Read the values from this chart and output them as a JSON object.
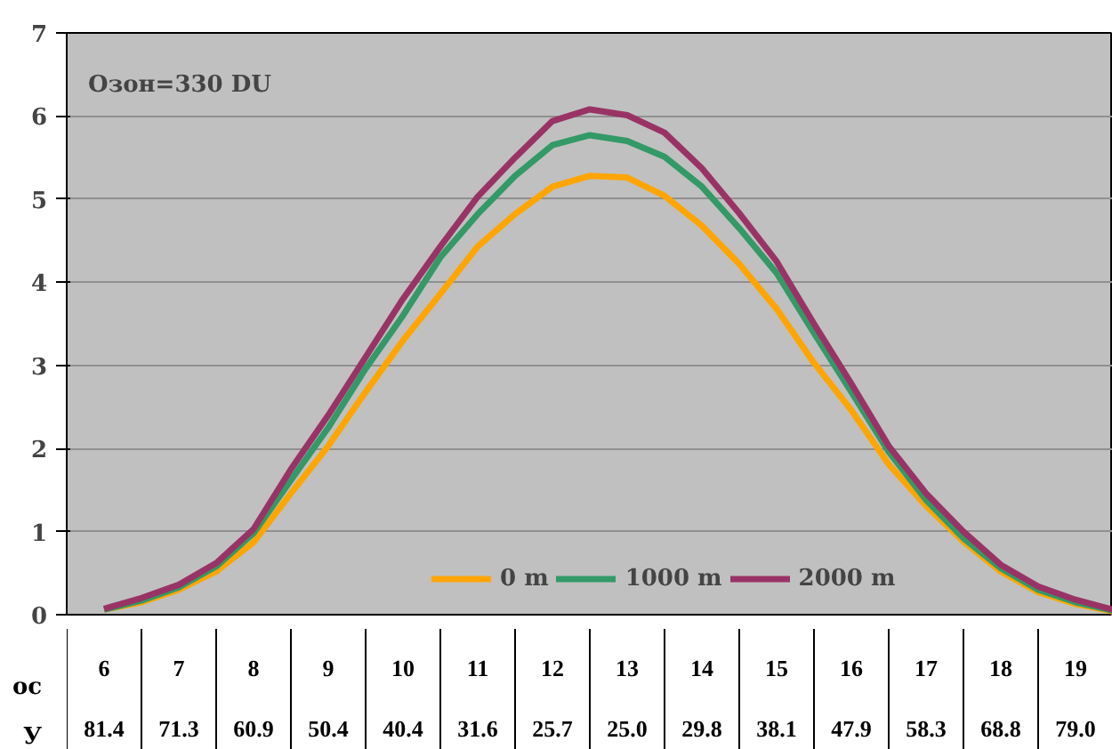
{
  "chart_data": {
    "type": "line",
    "title": "Озон=330 DU",
    "x": [
      6,
      6.5,
      7,
      7.5,
      8,
      8.5,
      9,
      9.5,
      10,
      10.5,
      11,
      11.5,
      12,
      12.5,
      13,
      13.5,
      14,
      14.5,
      15,
      15.5,
      16,
      16.5,
      17,
      17.5,
      18,
      18.5,
      19,
      19.5
    ],
    "series": [
      {
        "name": "0 m",
        "color": "#ffa500",
        "values": [
          0.06,
          0.15,
          0.3,
          0.52,
          0.87,
          1.46,
          2.03,
          2.68,
          3.3,
          3.86,
          4.43,
          4.82,
          5.15,
          5.28,
          5.26,
          5.04,
          4.68,
          4.22,
          3.68,
          3.03,
          2.46,
          1.81,
          1.31,
          0.88,
          0.52,
          0.27,
          0.13,
          0.04
        ]
      },
      {
        "name": "1000 m",
        "color": "#339966",
        "values": [
          0.06,
          0.17,
          0.33,
          0.58,
          0.98,
          1.62,
          2.25,
          2.96,
          3.6,
          4.3,
          4.82,
          5.28,
          5.65,
          5.77,
          5.7,
          5.51,
          5.15,
          4.65,
          4.11,
          3.39,
          2.68,
          1.96,
          1.38,
          0.92,
          0.56,
          0.3,
          0.15,
          0.05
        ]
      },
      {
        "name": "2000 m",
        "color": "#993366",
        "values": [
          0.07,
          0.2,
          0.36,
          0.62,
          1.03,
          1.75,
          2.4,
          3.1,
          3.8,
          4.43,
          5.03,
          5.5,
          5.94,
          6.08,
          6.01,
          5.8,
          5.37,
          4.83,
          4.25,
          3.5,
          2.78,
          2.03,
          1.46,
          1.0,
          0.6,
          0.34,
          0.18,
          0.06
        ]
      }
    ],
    "xlim": [
      5.5,
      19.5
    ],
    "xticks": [
      6,
      7,
      8,
      9,
      10,
      11,
      12,
      13,
      14,
      15,
      16,
      17,
      18,
      19
    ],
    "ylim": [
      0,
      7
    ],
    "yticks": [
      0,
      1,
      2,
      3,
      4,
      5,
      6,
      7
    ],
    "annotations": [
      "ос",
      "У",
      "81.4",
      "71.3",
      "60.9",
      "50.4",
      "40.4",
      "31.6",
      "25.7",
      "25.0",
      "29.8",
      "38.1",
      "47.9",
      "58.3",
      "68.8",
      "79.0"
    ],
    "grid": "y",
    "legend": "bottom",
    "marker": "none",
    "line_style": "solid"
  }
}
